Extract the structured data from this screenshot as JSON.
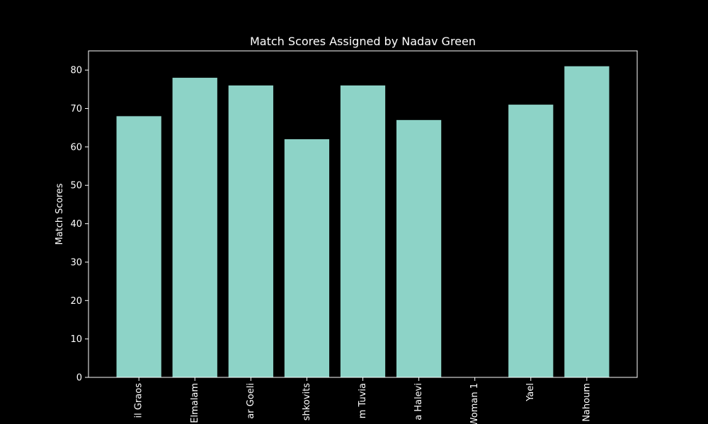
{
  "chart_data": {
    "type": "bar",
    "title": "Match Scores Assigned by Nadav Green",
    "xlabel": "",
    "ylabel": "Match Scores",
    "categories": [
      "il Graos",
      "Elmalam",
      "ar Goeli",
      "shkovits",
      "m Tuvia",
      "a Halevi",
      "Woman 1",
      "Yael",
      "Nahoum"
    ],
    "values": [
      68,
      78,
      76,
      62,
      76,
      67,
      0,
      71,
      81
    ],
    "ylim": [
      0,
      85
    ],
    "yticks": [
      0,
      10,
      20,
      30,
      40,
      50,
      60,
      70,
      80
    ],
    "grid": false,
    "bar_color": "#8dd3c7",
    "background_color": "#000000",
    "axis_color": "#ffffff"
  }
}
